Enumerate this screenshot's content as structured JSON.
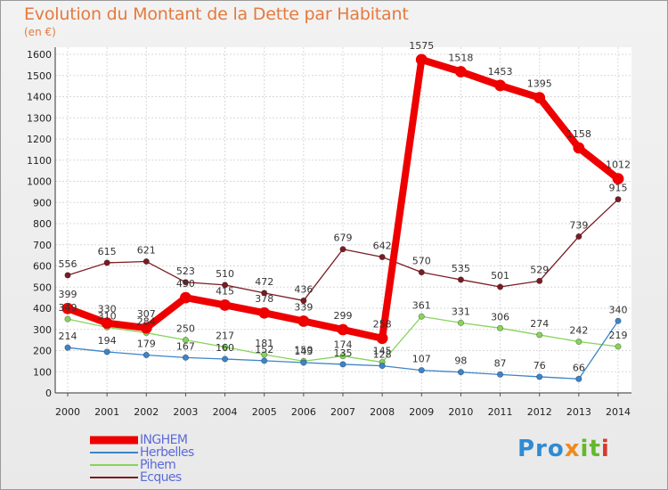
{
  "title": "Evolution du Montant de la Dette par Habitant",
  "subtitle": "(en €)",
  "brand": {
    "part1": "Pro",
    "part2": "x",
    "part3": "it",
    "part4": "i"
  },
  "chart_data": {
    "type": "line",
    "title": "Evolution du Montant de la Dette par Habitant",
    "ylabel": "(en €)",
    "xlabel": "",
    "ylim": [
      0,
      1600
    ],
    "y_ticks": [
      0,
      100,
      200,
      300,
      400,
      500,
      600,
      700,
      800,
      900,
      1000,
      1100,
      1200,
      1300,
      1400,
      1500,
      1600
    ],
    "grid": true,
    "legend_position": "bottom-left",
    "categories": [
      "2000",
      "2001",
      "2002",
      "2003",
      "2004",
      "2005",
      "2006",
      "2007",
      "2008",
      "2009",
      "2010",
      "2011",
      "2012",
      "2013",
      "2014"
    ],
    "series": [
      {
        "name": "Ecques",
        "color": "#7a1c22",
        "thick": false,
        "values": [
          556,
          615,
          621,
          523,
          510,
          472,
          436,
          679,
          642,
          570,
          535,
          501,
          529,
          739,
          915
        ]
      },
      {
        "name": "Pihem",
        "color": "#86d45a",
        "thick": false,
        "values": [
          349,
          310,
          284,
          250,
          217,
          181,
          150,
          174,
          145,
          361,
          331,
          306,
          274,
          242,
          219
        ]
      },
      {
        "name": "Herbelles",
        "color": "#3d84c9",
        "thick": false,
        "values": [
          214,
          194,
          179,
          167,
          160,
          152,
          143,
          135,
          128,
          107,
          98,
          87,
          76,
          66,
          340
        ]
      },
      {
        "name": "INGHEM",
        "color": "#ee0000",
        "thick": true,
        "values": [
          399,
          330,
          307,
          450,
          415,
          378,
          339,
          299,
          258,
          1575,
          1518,
          1453,
          1395,
          1158,
          1012
        ]
      }
    ],
    "legend": [
      "INGHEM",
      "Herbelles",
      "Pihem",
      "Ecques"
    ]
  }
}
